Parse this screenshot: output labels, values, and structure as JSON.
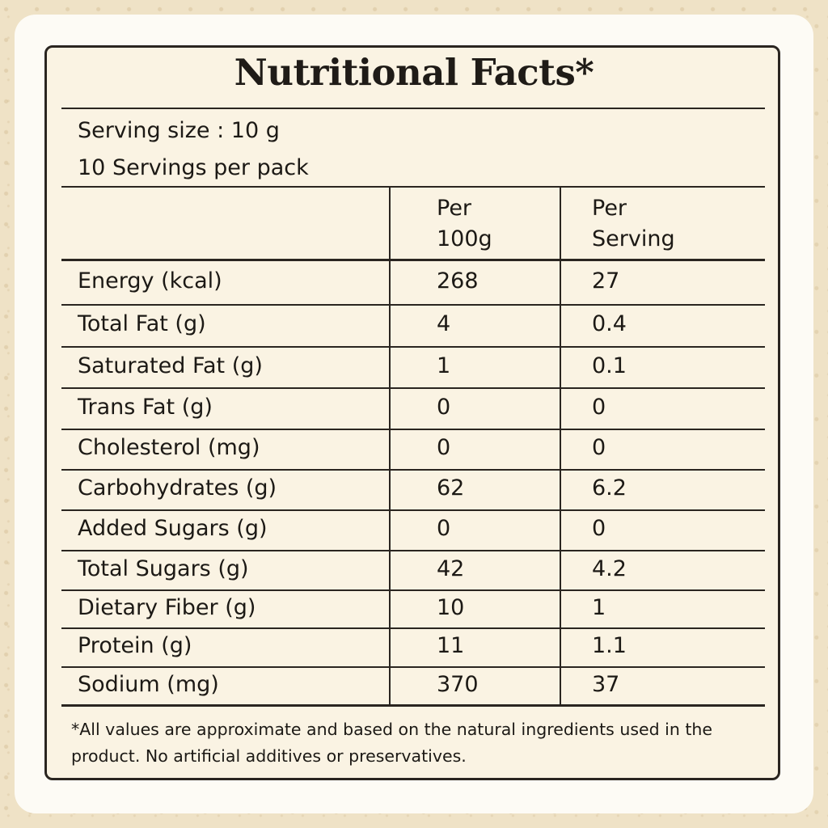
{
  "title": "Nutritional Facts*",
  "serving_size": "Serving size : 10 g",
  "servings_per_pack": "10 Servings per pack",
  "columns": {
    "per_100g": "Per\n100g",
    "per_serving": "Per\nServing"
  },
  "rows": [
    {
      "nutrient": "Energy (kcal)",
      "per_100g": "268",
      "per_serving": "27"
    },
    {
      "nutrient": "Total Fat (g)",
      "per_100g": "4",
      "per_serving": "0.4"
    },
    {
      "nutrient": "Saturated Fat (g)",
      "per_100g": "1",
      "per_serving": "0.1"
    },
    {
      "nutrient": "Trans Fat (g)",
      "per_100g": "0",
      "per_serving": "0"
    },
    {
      "nutrient": "Cholesterol (mg)",
      "per_100g": "0",
      "per_serving": "0"
    },
    {
      "nutrient": "Carbohydrates (g)",
      "per_100g": "62",
      "per_serving": "6.2"
    },
    {
      "nutrient": "Added Sugars (g)",
      "per_100g": "0",
      "per_serving": "0"
    },
    {
      "nutrient": "Total Sugars (g)",
      "per_100g": "42",
      "per_serving": "4.2"
    },
    {
      "nutrient": "Dietary Fiber (g)",
      "per_100g": "10",
      "per_serving": "1"
    },
    {
      "nutrient": "Protein (g)",
      "per_100g": "11",
      "per_serving": "1.1"
    },
    {
      "nutrient": "Sodium (mg)",
      "per_100g": "370",
      "per_serving": "37"
    }
  ],
  "footnote": "*All values are approximate and based on the natural ingredients used in the product. No artificial additives or preservatives."
}
